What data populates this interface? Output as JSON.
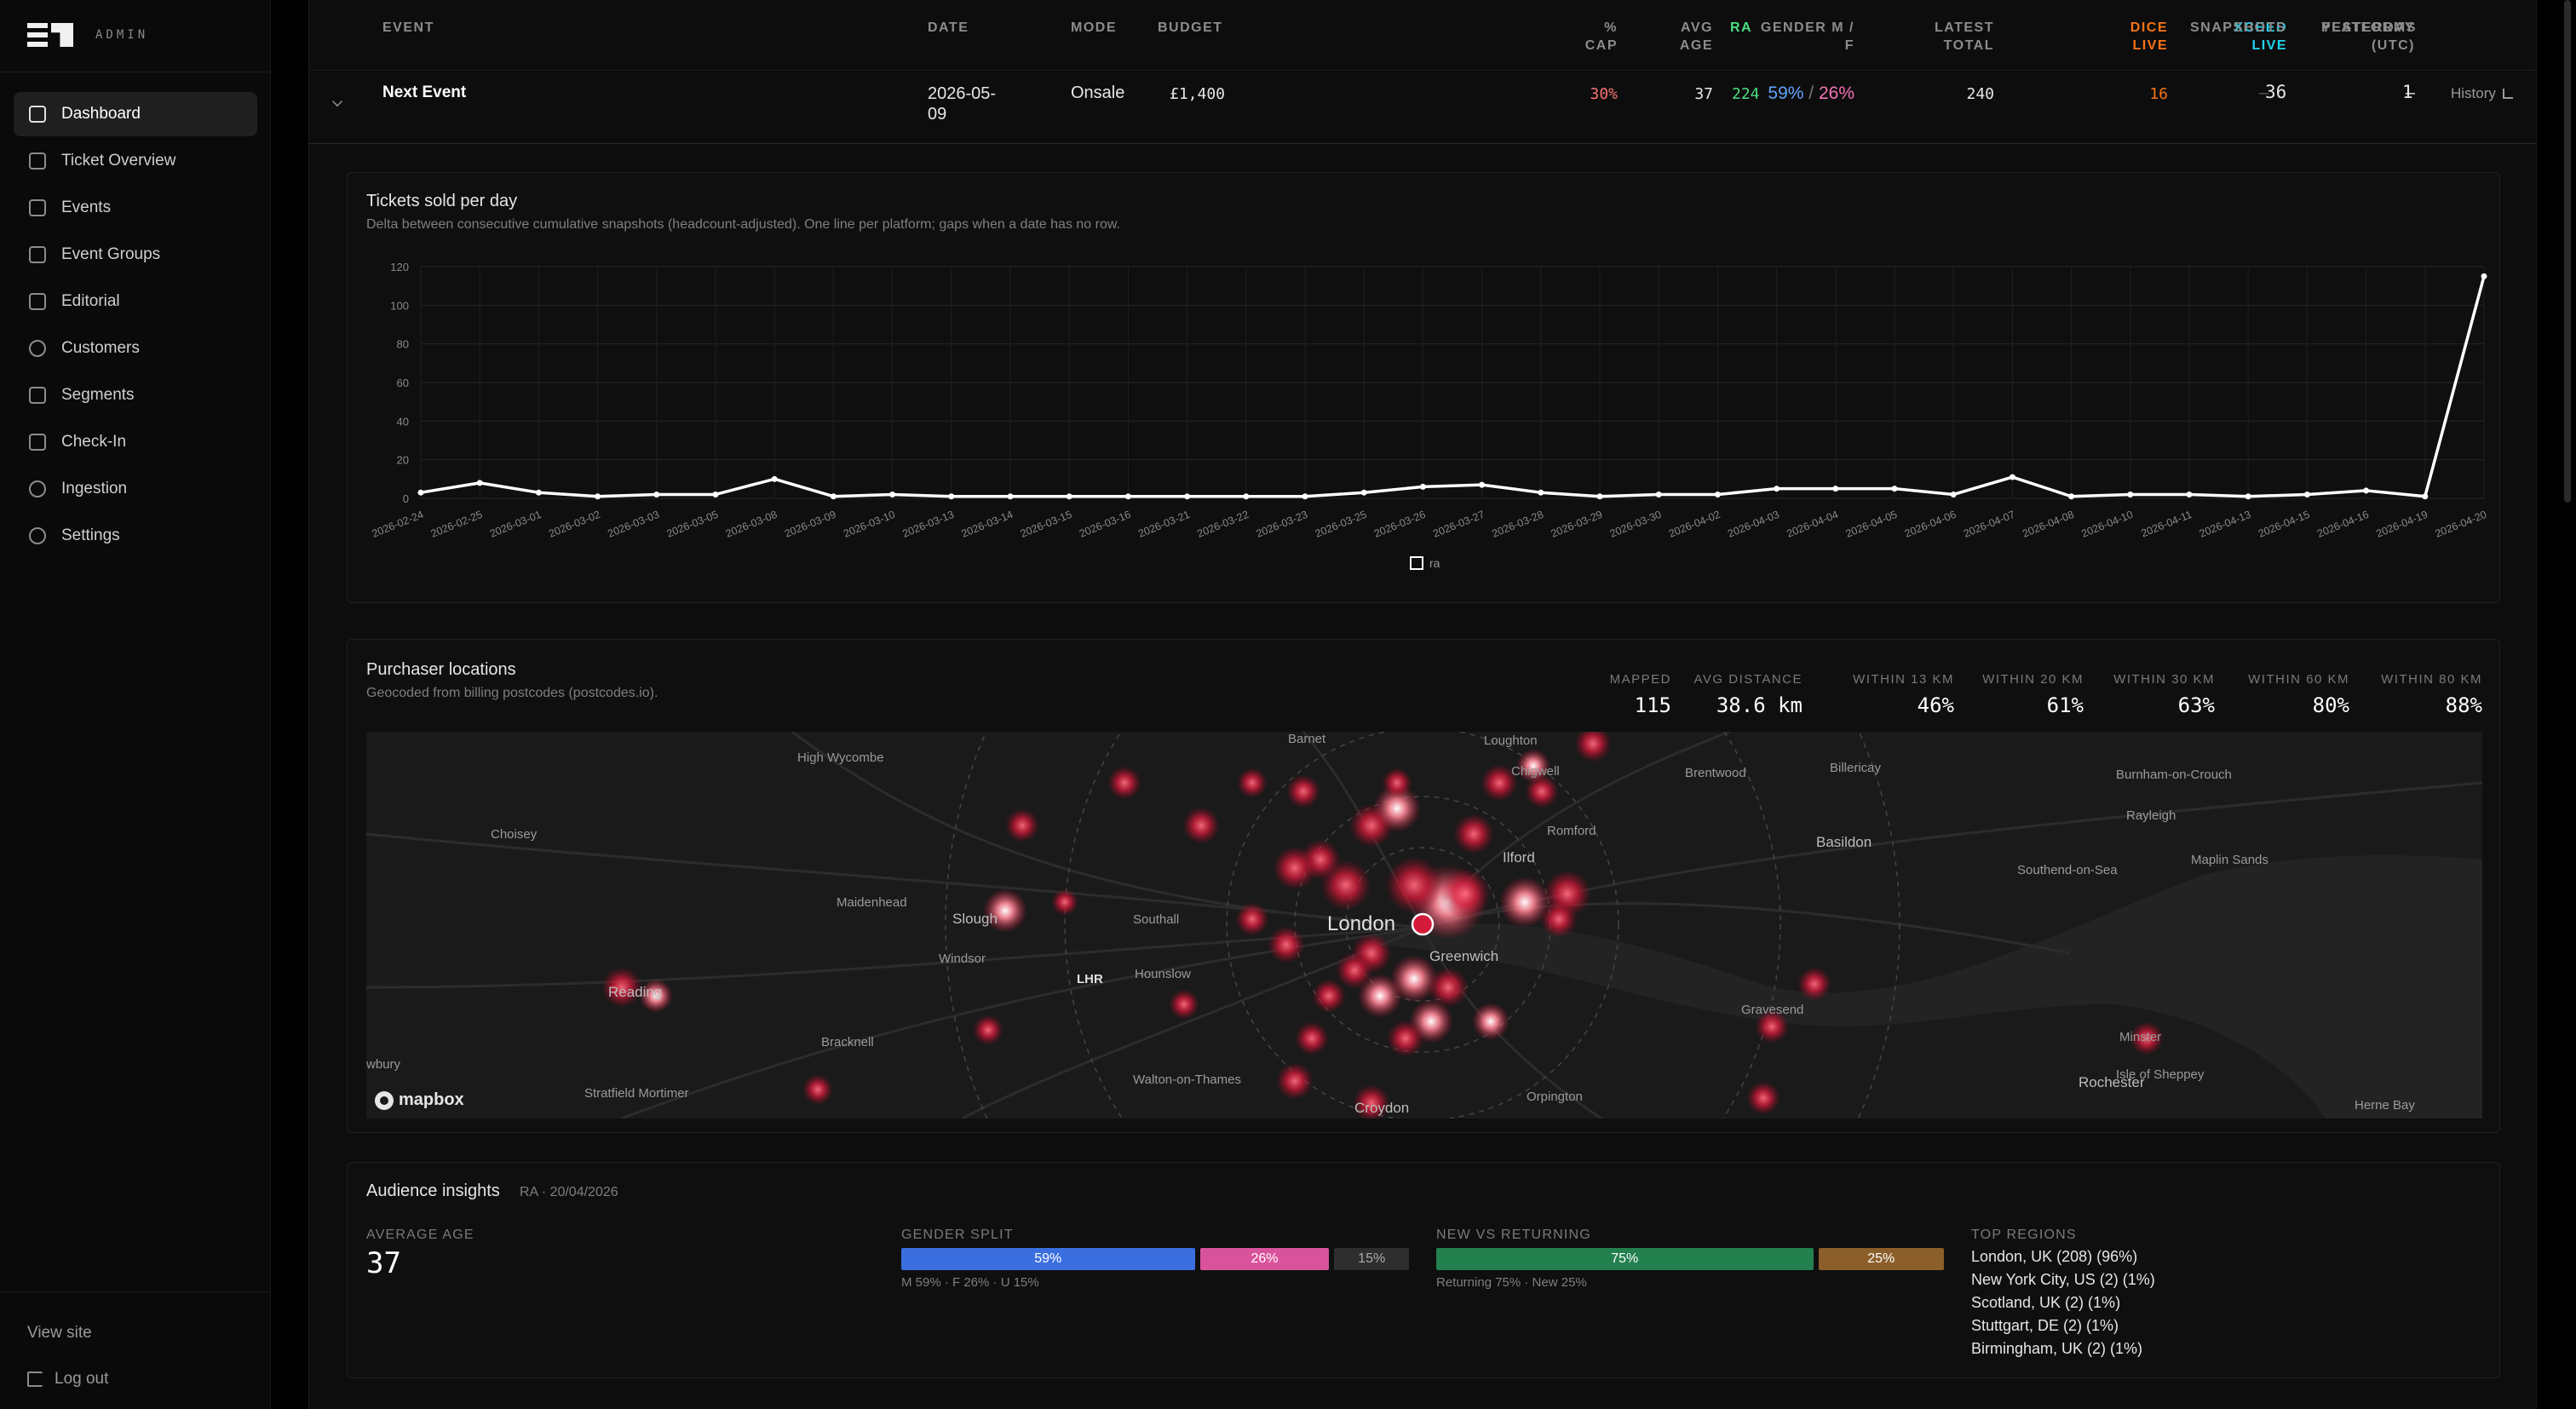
{
  "brand": {
    "admin_label": "ADMIN"
  },
  "nav": [
    {
      "label": "Dashboard",
      "active": true
    },
    {
      "label": "Ticket Overview"
    },
    {
      "label": "Events"
    },
    {
      "label": "Event Groups"
    },
    {
      "label": "Editorial"
    },
    {
      "label": "Customers"
    },
    {
      "label": "Segments"
    },
    {
      "label": "Check-In"
    },
    {
      "label": "Ingestion"
    },
    {
      "label": "Settings"
    }
  ],
  "sidebar_footer": {
    "view_site": "View site",
    "logout": "Log out"
  },
  "table": {
    "headers": {
      "event": "EVENT",
      "date": "DATE",
      "mode": "MODE",
      "budget": "BUDGET",
      "cap_1": "%",
      "cap_2": "CAP",
      "age_1": "AVG",
      "age_2": "AGE",
      "gender_1": "GENDER M /",
      "gender_2": "F",
      "latest_1": "LATEST",
      "latest_2": "TOTAL",
      "ra": "RA",
      "dice_1": "DICE",
      "dice_2": "LIVE",
      "xceed_1": "XCEED",
      "xceed_2": "LIVE",
      "yest_1": "YESTERDAY",
      "yest_2": "(UTC)",
      "snapshots": "SNAPSHOTS",
      "platforms": "PLATFORMS"
    },
    "row": {
      "event": "Next Event",
      "date_1": "2026-05-",
      "date_2": "09",
      "mode": "Onsale",
      "budget": "£1,400",
      "cap": "30%",
      "age": "37",
      "gender_m": "59%",
      "gender_sep": "/",
      "gender_f": "26%",
      "latest": "240",
      "ra": "224",
      "dice": "16",
      "xceed": "–",
      "yesterday": "–",
      "snapshots": "36",
      "platforms": "1",
      "history": "History"
    }
  },
  "colors": {
    "ra": "#4ade80",
    "dice": "#f97316",
    "xceed": "#22d3ee",
    "cap": "#f87171",
    "male": "#60a5fa",
    "female": "#f472b6"
  },
  "tickets_panel": {
    "title": "Tickets sold per day",
    "subtitle": "Delta between consecutive cumulative snapshots (headcount-adjusted). One line per platform; gaps when a date has no row."
  },
  "chart_data": {
    "type": "line",
    "title": "Tickets sold per day",
    "xlabel": "",
    "ylabel": "",
    "ylim": [
      0,
      120
    ],
    "yticks": [
      0,
      20,
      40,
      60,
      80,
      100,
      120
    ],
    "grid": true,
    "legend": "bottom",
    "x": [
      "2026-02-24",
      "2026-02-25",
      "2026-03-01",
      "2026-03-02",
      "2026-03-03",
      "2026-03-05",
      "2026-03-08",
      "2026-03-09",
      "2026-03-10",
      "2026-03-13",
      "2026-03-14",
      "2026-03-15",
      "2026-03-16",
      "2026-03-21",
      "2026-03-22",
      "2026-03-23",
      "2026-03-25",
      "2026-03-26",
      "2026-03-27",
      "2026-03-28",
      "2026-03-29",
      "2026-03-30",
      "2026-04-02",
      "2026-04-03",
      "2026-04-04",
      "2026-04-05",
      "2026-04-06",
      "2026-04-07",
      "2026-04-08",
      "2026-04-10",
      "2026-04-11",
      "2026-04-13",
      "2026-04-15",
      "2026-04-16",
      "2026-04-19",
      "2026-04-20"
    ],
    "series": [
      {
        "name": "ra",
        "color": "#ffffff",
        "values": [
          3,
          8,
          3,
          1,
          2,
          2,
          10,
          1,
          2,
          1,
          1,
          1,
          1,
          1,
          1,
          1,
          3,
          6,
          7,
          3,
          1,
          2,
          2,
          5,
          5,
          5,
          2,
          11,
          1,
          2,
          2,
          1,
          2,
          4,
          1,
          115
        ]
      }
    ]
  },
  "locations_panel": {
    "title": "Purchaser locations",
    "subtitle": "Geocoded from billing postcodes (postcodes.io).",
    "stats": [
      {
        "label": "MAPPED",
        "value": "115"
      },
      {
        "label": "AVG DISTANCE",
        "value": "38.6 km"
      },
      {
        "label": "WITHIN 13 KM",
        "value": "46%"
      },
      {
        "label": "WITHIN 20 KM",
        "value": "61%"
      },
      {
        "label": "WITHIN 30 KM",
        "value": "63%"
      },
      {
        "label": "WITHIN 60 KM",
        "value": "80%"
      },
      {
        "label": "WITHIN 80 KM",
        "value": "88%"
      }
    ],
    "map_labels": [
      "High Wycombe",
      "Loughton",
      "Chigwell",
      "Brentwood",
      "Billericay",
      "Burnham-on-Crouch",
      "Rayleigh",
      "Basildon",
      "Southend-on-Sea",
      "Maplin Sands",
      "Choisey",
      "Maidenhead",
      "Slough",
      "Windsor",
      "Southall",
      "Ilford",
      "Romford",
      "London",
      "Greenwich",
      "LHR",
      "Hounslow",
      "Reading",
      "Bracknell",
      "Walton-on-Thames",
      "Gravesend",
      "Rochester",
      "Minster",
      "Isle of Sheppey",
      "Stratfield Mortimer",
      "Croydon",
      "Orpington",
      "Herne Bay",
      "Barnet",
      "wbury"
    ],
    "attribution": "mapbox"
  },
  "insights": {
    "title": "Audience insights",
    "meta": "RA · 20/04/2026",
    "avg_age_label": "AVERAGE AGE",
    "avg_age": "37",
    "gender_label": "GENDER SPLIT",
    "gender": [
      {
        "label": "59%",
        "value": 59
      },
      {
        "label": "26%",
        "value": 26
      },
      {
        "label": "15%",
        "value": 15
      }
    ],
    "gender_sub": "M 59% · F 26% · U 15%",
    "returning_label": "NEW VS RETURNING",
    "returning": [
      {
        "label": "75%",
        "value": 75
      },
      {
        "label": "25%",
        "value": 25
      }
    ],
    "returning_sub": "Returning 75% · New 25%",
    "regions_label": "TOP REGIONS",
    "regions": [
      "London, UK (208) (96%)",
      "New York City, US (2) (1%)",
      "Scotland, UK (2) (1%)",
      "Stuttgart, DE (2) (1%)",
      "Birmingham, UK (2) (1%)"
    ]
  }
}
